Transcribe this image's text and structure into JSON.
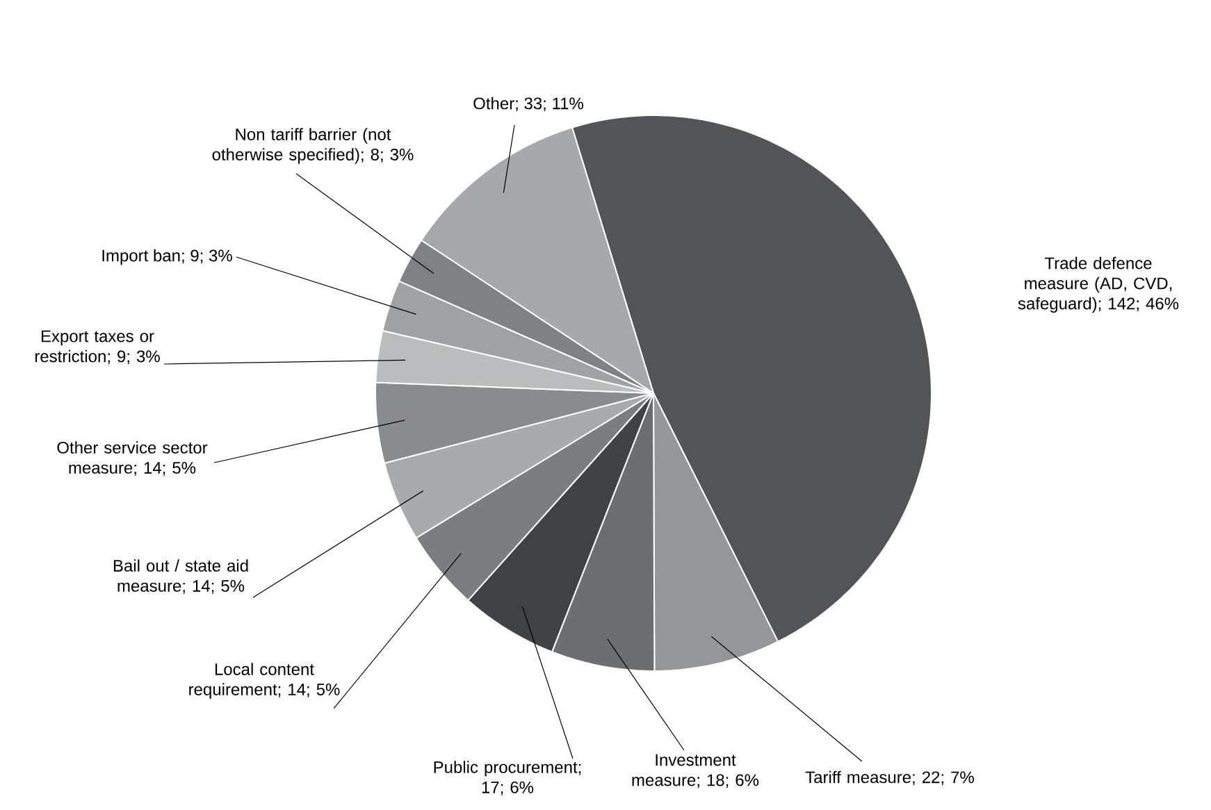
{
  "chart_data": {
    "type": "pie",
    "categories": [
      "Trade defence measure (AD, CVD, safeguard); 142; 46%",
      "Tariff measure; 22; 7%",
      "Investment measure; 18; 6%",
      "Public procurement; 17; 6%",
      "Local content requirement; 14; 5%",
      "Bail out / state aid measure; 14; 5%",
      "Other service sector measure; 14; 5%",
      "Export taxes or restriction; 9; 3%",
      "Import ban; 9; 3%",
      "Non tariff barrier (not otherwise specified); 8; 3%",
      "Other; 33; 11%"
    ],
    "values": [
      142,
      22,
      18,
      17,
      14,
      14,
      14,
      9,
      9,
      8,
      33
    ],
    "colors": [
      "#535457",
      "#959699",
      "#6d6e71",
      "#414245",
      "#7c7d80",
      "#a9aaad",
      "#8a8b8e",
      "#bbbcbe",
      "#a0a1a4",
      "#808184",
      "#a7a8ab"
    ]
  }
}
